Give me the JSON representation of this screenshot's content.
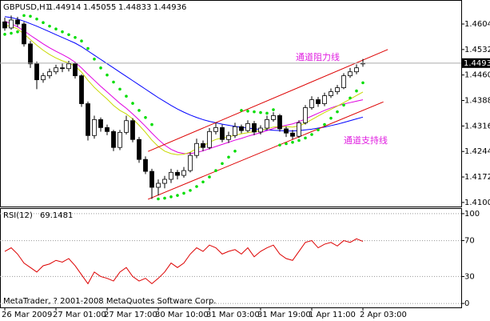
{
  "chart_data": [
    {
      "type": "candlestick",
      "title": "GBPUSD,H1",
      "categories": [
        "26 Mar 2009",
        null,
        null,
        null,
        null,
        null,
        null,
        null,
        "27 Mar 01:00",
        null,
        null,
        null,
        null,
        null,
        null,
        null,
        "27 Mar 17:00",
        null,
        null,
        null,
        null,
        null,
        null,
        null,
        "30 Mar 10:00",
        null,
        null,
        null,
        null,
        null,
        null,
        null,
        "31 Mar 03:00",
        null,
        null,
        null,
        null,
        null,
        null,
        null,
        "31 Mar 19:00",
        null,
        null,
        null,
        null,
        null,
        null,
        null,
        "1 Apr 11:00",
        null,
        null,
        null,
        null,
        null,
        null,
        null,
        "2 Apr 03:00"
      ],
      "open": [
        1.461,
        1.45928,
        1.46153,
        1.4604,
        1.45478,
        1.44915,
        1.44465,
        1.44578,
        1.4469,
        1.44803,
        1.4478,
        1.44915,
        1.44578,
        1.4379,
        1.4289,
        1.4334,
        1.43115,
        1.43003,
        1.42553,
        1.4298,
        1.4331,
        1.42778,
        1.42215,
        1.41878,
        1.41428,
        1.4154,
        1.41653,
        1.4185,
        1.41765,
        1.419,
        1.42328,
        1.42665,
        1.42553,
        1.43003,
        1.43115,
        1.42778,
        1.4289,
        1.4314,
        1.4303,
        1.43228,
        1.4299,
        1.431,
        1.4334,
        1.43453,
        1.4308,
        1.4296,
        1.4287,
        1.4325,
        1.43678,
        1.43903,
        1.4379,
        1.44015,
        1.44128,
        1.4424,
        1.44578,
        1.4469,
        1.44914
      ],
      "high": [
        1.4622,
        1.4628,
        1.4624,
        1.461,
        1.4556,
        1.4498,
        1.4466,
        1.4478,
        1.4489,
        1.4492,
        1.45,
        1.4496,
        1.4462,
        1.4385,
        1.4345,
        1.434,
        1.432,
        1.4305,
        1.4305,
        1.4345,
        1.4338,
        1.4285,
        1.423,
        1.4195,
        1.4165,
        1.4175,
        1.4195,
        1.4192,
        1.42,
        1.4242,
        1.428,
        1.4275,
        1.431,
        1.4325,
        1.432,
        1.43,
        1.4325,
        1.432,
        1.4332,
        1.433,
        1.4318,
        1.4345,
        1.4355,
        1.435,
        1.4315,
        1.4305,
        1.4332,
        1.4375,
        1.44,
        1.4398,
        1.441,
        1.4422,
        1.4432,
        1.4465,
        1.448,
        1.449,
        1.45055
      ],
      "low": [
        1.4585,
        1.4588,
        1.4596,
        1.454,
        1.448,
        1.442,
        1.4438,
        1.445,
        1.4462,
        1.4468,
        1.447,
        1.445,
        1.437,
        1.4275,
        1.428,
        1.43,
        1.429,
        1.4245,
        1.4248,
        1.4292,
        1.427,
        1.4212,
        1.418,
        1.411,
        1.412,
        1.414,
        1.4155,
        1.4165,
        1.417,
        1.4185,
        1.4225,
        1.4245,
        1.425,
        1.4292,
        1.427,
        1.4268,
        1.4282,
        1.4295,
        1.4298,
        1.429,
        1.4292,
        1.4305,
        1.4328,
        1.43,
        1.4285,
        1.4278,
        1.4282,
        1.432,
        1.4362,
        1.437,
        1.4372,
        1.4395,
        1.4405,
        1.442,
        1.4452,
        1.4462,
        1.44833
      ],
      "close": [
        1.45928,
        1.46153,
        1.4604,
        1.45478,
        1.44915,
        1.44465,
        1.44578,
        1.4469,
        1.44803,
        1.4478,
        1.44915,
        1.44578,
        1.4379,
        1.4289,
        1.4334,
        1.43115,
        1.43003,
        1.42553,
        1.4298,
        1.4331,
        1.42778,
        1.42215,
        1.41878,
        1.41428,
        1.4154,
        1.41653,
        1.4185,
        1.41765,
        1.419,
        1.42328,
        1.42665,
        1.42553,
        1.43003,
        1.43115,
        1.42778,
        1.4289,
        1.4314,
        1.4303,
        1.43228,
        1.4299,
        1.431,
        1.4334,
        1.43453,
        1.4308,
        1.4296,
        1.4287,
        1.4325,
        1.43678,
        1.43903,
        1.4379,
        1.44015,
        1.44128,
        1.4424,
        1.44578,
        1.4469,
        1.44803,
        1.44936
      ],
      "up_color": "#ffffff",
      "down_color": "#000000",
      "series": [
        {
          "color": "#0000ff",
          "values": [
            1.4625,
            1.4622,
            1.4618,
            1.4612,
            1.4605,
            1.4598,
            1.459,
            1.4582,
            1.4574,
            1.4566,
            1.4558,
            1.455,
            1.454,
            1.4528,
            1.4516,
            1.4504,
            1.4492,
            1.448,
            1.4468,
            1.4456,
            1.4444,
            1.4432,
            1.442,
            1.4408,
            1.4396,
            1.4385,
            1.4374,
            1.4364,
            1.4355,
            1.4347,
            1.434,
            1.4334,
            1.4329,
            1.4325,
            1.4321,
            1.4318,
            1.4315,
            1.4312,
            1.431,
            1.4308,
            1.4306,
            1.4305,
            1.4304,
            1.4303,
            1.4302,
            1.4302,
            1.4303,
            1.4305,
            1.4307,
            1.431,
            1.4313,
            1.4317,
            1.4321,
            1.4326,
            1.4331,
            1.4336,
            1.4341
          ]
        },
        {
          "color": "#e000e0",
          "values": [
            1.4612,
            1.4605,
            1.4596,
            1.4585,
            1.4572,
            1.456,
            1.4548,
            1.4537,
            1.4527,
            1.4518,
            1.4508,
            1.4496,
            1.448,
            1.4462,
            1.4445,
            1.4428,
            1.4412,
            1.4396,
            1.438,
            1.4366,
            1.435,
            1.4333,
            1.4315,
            1.4296,
            1.4278,
            1.4262,
            1.425,
            1.4242,
            1.4238,
            1.4238,
            1.4241,
            1.4246,
            1.4252,
            1.4258,
            1.4264,
            1.427,
            1.4276,
            1.4281,
            1.4287,
            1.4292,
            1.4297,
            1.4303,
            1.4309,
            1.4314,
            1.4318,
            1.4322,
            1.4328,
            1.4336,
            1.4344,
            1.4352,
            1.436,
            1.4367,
            1.4373,
            1.4378,
            1.4382,
            1.4386,
            1.439
          ]
        },
        {
          "color": "#c8d800",
          "values": [
            1.46,
            1.4598,
            1.459,
            1.4576,
            1.456,
            1.4544,
            1.453,
            1.4518,
            1.4508,
            1.45,
            1.4494,
            1.4485,
            1.4468,
            1.4445,
            1.4425,
            1.4408,
            1.4392,
            1.4374,
            1.436,
            1.435,
            1.4336,
            1.4318,
            1.4298,
            1.4276,
            1.4258,
            1.4245,
            1.4238,
            1.4235,
            1.4236,
            1.4242,
            1.4252,
            1.426,
            1.427,
            1.4278,
            1.4282,
            1.4285,
            1.429,
            1.4294,
            1.4297,
            1.43,
            1.4303,
            1.4308,
            1.4313,
            1.4314,
            1.4314,
            1.4313,
            1.4316,
            1.4324,
            1.4334,
            1.4344,
            1.4354,
            1.4363,
            1.4372,
            1.4382,
            1.4392,
            1.4402,
            1.4412
          ]
        }
      ],
      "sar": {
        "color": "#00dd00",
        "values": [
          1.4575,
          1.4578,
          1.4582,
          1.4628,
          1.4626,
          1.4618,
          1.4608,
          1.4598,
          1.459,
          1.4582,
          1.4574,
          1.4566,
          1.4556,
          1.4535,
          1.4505,
          1.448,
          1.446,
          1.444,
          1.442,
          1.44,
          1.438,
          1.436,
          1.434,
          1.432,
          1.411,
          1.4112,
          1.4116,
          1.412,
          1.4126,
          1.4134,
          1.4145,
          1.4158,
          1.4172,
          1.419,
          1.421,
          1.4228,
          1.4245,
          1.436,
          1.4358,
          1.4356,
          1.4354,
          1.4352,
          1.4362,
          1.4262,
          1.4266,
          1.427,
          1.4275,
          1.4282,
          1.4292,
          1.4305,
          1.432,
          1.4338,
          1.4356,
          1.4375,
          1.4395,
          1.4415,
          1.4438
        ]
      },
      "channels": [
        {
          "label": "通道阻力线",
          "color": "#dd0000",
          "x": [
            22.4,
            59.9
          ],
          "values": [
            1.4244,
            1.4532
          ]
        },
        {
          "label": "通道支持线",
          "color": "#dd0000",
          "x": [
            22.4,
            59.2
          ],
          "values": [
            1.4109,
            1.4384
          ]
        }
      ],
      "annotation_color": "#e020e0",
      "ylim": [
        1.40885,
        1.46673
      ],
      "yticks": [
        {
          "value": 1.4604,
          "label": "1.46040"
        },
        {
          "value": 1.4532,
          "label": "1.45320"
        },
        {
          "value": 1.446,
          "label": "1.44600"
        },
        {
          "value": 1.4388,
          "label": "1.43880"
        },
        {
          "value": 1.4316,
          "label": "1.43160"
        },
        {
          "value": 1.4244,
          "label": "1.42440"
        },
        {
          "value": 1.4172,
          "label": "1.41720"
        },
        {
          "value": 1.41,
          "label": "1.41000"
        }
      ]
    },
    {
      "type": "line",
      "title": "RSI(12)",
      "color": "#dd0000",
      "values": [
        58,
        62,
        55,
        45,
        40,
        35,
        42,
        44,
        48,
        46,
        50,
        42,
        32,
        22,
        35,
        30,
        28,
        25,
        35,
        40,
        30,
        25,
        28,
        22,
        28,
        35,
        45,
        40,
        45,
        55,
        62,
        58,
        65,
        62,
        55,
        58,
        60,
        55,
        62,
        52,
        58,
        62,
        65,
        55,
        50,
        48,
        58,
        68,
        70,
        62,
        66,
        68,
        64,
        70,
        68,
        72,
        69.1481
      ],
      "ylim": [
        -3.5,
        103.5
      ],
      "yticks": [
        100,
        70,
        30,
        0
      ],
      "grid": true,
      "footer": "MetaTrader, ? 2001-2008 MetaQuotes Software Corp."
    }
  ]
}
